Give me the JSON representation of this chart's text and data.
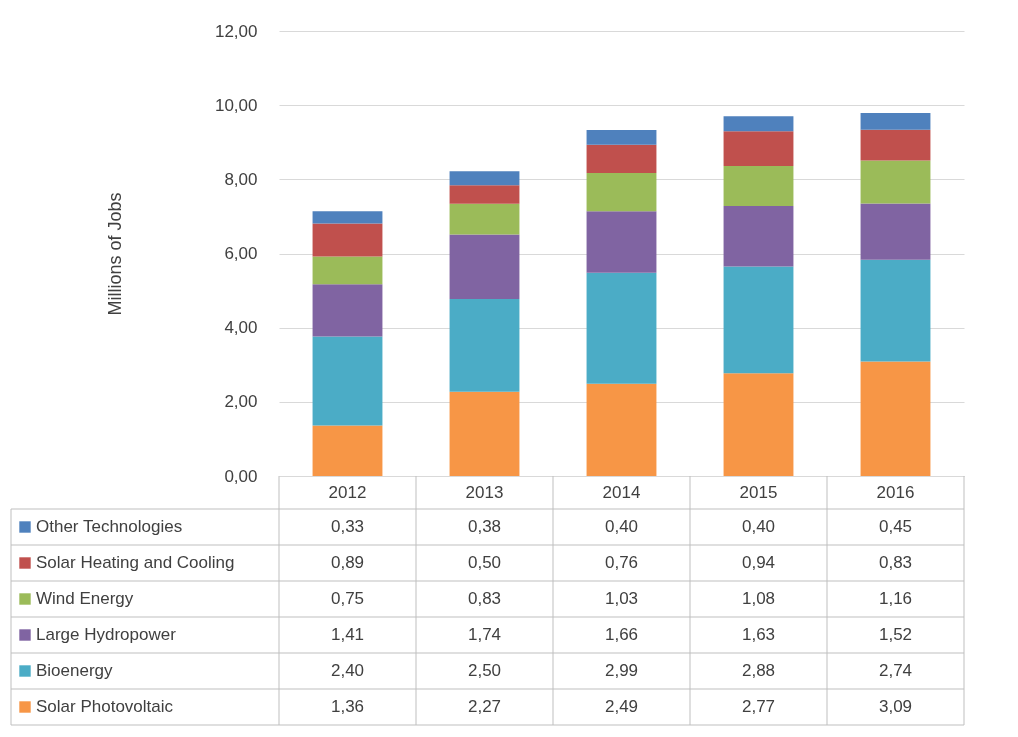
{
  "chart_data": {
    "type": "bar",
    "stacked": true,
    "ylabel": "Millions of Jobs",
    "categories": [
      "2012",
      "2013",
      "2014",
      "2015",
      "2016"
    ],
    "ylim": [
      0,
      12
    ],
    "yticks": [
      {
        "value": 0,
        "label": "0,00"
      },
      {
        "value": 2,
        "label": "2,00"
      },
      {
        "value": 4,
        "label": "4,00"
      },
      {
        "value": 6,
        "label": "6,00"
      },
      {
        "value": 8,
        "label": "8,00"
      },
      {
        "value": 10,
        "label": "10,00"
      },
      {
        "value": 12,
        "label": "12,00"
      }
    ],
    "grid": "y",
    "legend": "bottom",
    "series": [
      {
        "name": "Solar Photovoltaic",
        "color": "#f79646",
        "values": [
          1.36,
          2.27,
          2.49,
          2.77,
          3.09
        ],
        "value_labels": [
          "1,36",
          "2,27",
          "2,49",
          "2,77",
          "3,09"
        ]
      },
      {
        "name": "Bioenergy",
        "color": "#4bacc6",
        "values": [
          2.4,
          2.5,
          2.99,
          2.88,
          2.74
        ],
        "value_labels": [
          "2,40",
          "2,50",
          "2,99",
          "2,88",
          "2,74"
        ]
      },
      {
        "name": "Large Hydropower",
        "color": "#8064a2",
        "values": [
          1.41,
          1.74,
          1.66,
          1.63,
          1.52
        ],
        "value_labels": [
          "1,41",
          "1,74",
          "1,66",
          "1,63",
          "1,52"
        ]
      },
      {
        "name": "Wind Energy",
        "color": "#9bbb59",
        "values": [
          0.75,
          0.83,
          1.03,
          1.08,
          1.16
        ],
        "value_labels": [
          "0,75",
          "0,83",
          "1,03",
          "1,08",
          "1,16"
        ]
      },
      {
        "name": "Solar Heating and Cooling",
        "color": "#c0504d",
        "values": [
          0.89,
          0.5,
          0.76,
          0.94,
          0.83
        ],
        "value_labels": [
          "0,89",
          "0,50",
          "0,76",
          "0,94",
          "0,83"
        ]
      },
      {
        "name": "Other Technologies",
        "color": "#4f81bd",
        "values": [
          0.33,
          0.38,
          0.4,
          0.4,
          0.45
        ],
        "value_labels": [
          "0,33",
          "0,38",
          "0,40",
          "0,40",
          "0,45"
        ]
      }
    ]
  }
}
